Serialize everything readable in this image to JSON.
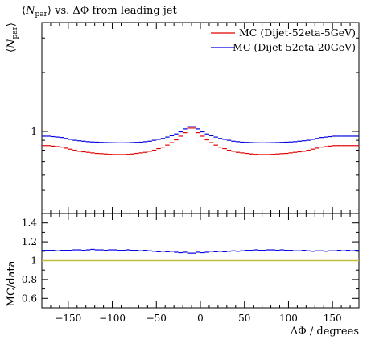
{
  "chart_data": {
    "type": "line",
    "title": "⟨N_par⟩ vs. ΔΦ from leading jet",
    "title_parts": {
      "prefix": "⟨",
      "symbol": "N",
      "subscript": "par",
      "suffix": "⟩ vs. ΔΦ from leading jet"
    },
    "xlabel": "ΔΦ / degrees",
    "xlim": [
      -180,
      180
    ],
    "xticks": [
      -150,
      -100,
      -50,
      0,
      50,
      100,
      150
    ],
    "upper_panel": {
      "ylabel": "⟨N_par⟩",
      "ylabel_parts": {
        "prefix": "⟨",
        "symbol": "N",
        "subscript": "par",
        "suffix": "⟩"
      },
      "yscale": "log",
      "ylim": [
        0.38,
        3.6
      ],
      "yticks": [
        1
      ],
      "legend_placement": "top-right"
    },
    "lower_panel": {
      "ylabel": "MC/data",
      "ylim": [
        0.5,
        1.5
      ],
      "yticks": [
        0.6,
        0.8,
        1,
        1.2,
        1.4
      ],
      "reference_line": 1,
      "reference_color": "#bfbf40"
    },
    "bin_width": 5,
    "series": [
      {
        "name": "MC (Dijet-52eta-5GeV)",
        "color": "#e00000",
        "panel": "upper",
        "values": [
          0.845,
          0.845,
          0.84,
          0.835,
          0.83,
          0.82,
          0.81,
          0.8,
          0.79,
          0.785,
          0.78,
          0.775,
          0.77,
          0.768,
          0.765,
          0.762,
          0.76,
          0.76,
          0.76,
          0.762,
          0.765,
          0.77,
          0.775,
          0.78,
          0.79,
          0.8,
          0.815,
          0.83,
          0.85,
          0.875,
          0.905,
          0.945,
          0.985,
          1.04,
          1.04,
          0.985,
          0.945,
          0.905,
          0.875,
          0.85,
          0.83,
          0.815,
          0.8,
          0.79,
          0.78,
          0.775,
          0.77,
          0.765,
          0.762,
          0.76,
          0.76,
          0.76,
          0.762,
          0.765,
          0.768,
          0.77,
          0.775,
          0.78,
          0.785,
          0.79,
          0.8,
          0.81,
          0.82,
          0.83,
          0.835,
          0.84,
          0.845,
          0.845,
          0.845,
          0.845,
          0.845,
          0.845
        ]
      },
      {
        "name": "MC (Dijet-52eta-20GeV)",
        "color": "#0000e0",
        "panel": "upper",
        "values": [
          0.945,
          0.945,
          0.94,
          0.935,
          0.93,
          0.92,
          0.91,
          0.9,
          0.895,
          0.89,
          0.885,
          0.882,
          0.88,
          0.878,
          0.876,
          0.875,
          0.874,
          0.873,
          0.873,
          0.874,
          0.876,
          0.878,
          0.88,
          0.885,
          0.89,
          0.9,
          0.91,
          0.92,
          0.935,
          0.95,
          0.97,
          0.995,
          1.03,
          1.06,
          1.06,
          1.03,
          0.995,
          0.97,
          0.95,
          0.935,
          0.92,
          0.91,
          0.9,
          0.89,
          0.885,
          0.88,
          0.878,
          0.876,
          0.874,
          0.873,
          0.873,
          0.874,
          0.875,
          0.876,
          0.878,
          0.88,
          0.882,
          0.885,
          0.89,
          0.895,
          0.9,
          0.91,
          0.92,
          0.93,
          0.935,
          0.94,
          0.945,
          0.945,
          0.945,
          0.945,
          0.945,
          0.945
        ]
      },
      {
        "name": "MC (Dijet-52eta-20GeV)",
        "color": "#0000e0",
        "panel": "lower",
        "values": [
          1.11,
          1.11,
          1.11,
          1.105,
          1.11,
          1.11,
          1.11,
          1.115,
          1.115,
          1.11,
          1.115,
          1.12,
          1.115,
          1.115,
          1.11,
          1.115,
          1.115,
          1.11,
          1.11,
          1.115,
          1.11,
          1.11,
          1.105,
          1.11,
          1.105,
          1.1,
          1.095,
          1.1,
          1.095,
          1.1,
          1.09,
          1.085,
          1.09,
          1.08,
          1.08,
          1.09,
          1.085,
          1.09,
          1.1,
          1.095,
          1.1,
          1.095,
          1.1,
          1.105,
          1.1,
          1.105,
          1.11,
          1.11,
          1.115,
          1.11,
          1.11,
          1.115,
          1.115,
          1.11,
          1.115,
          1.11,
          1.11,
          1.105,
          1.105,
          1.11,
          1.105,
          1.1,
          1.105,
          1.105,
          1.1,
          1.105,
          1.105,
          1.11,
          1.105,
          1.11,
          1.105,
          1.11
        ]
      }
    ]
  }
}
